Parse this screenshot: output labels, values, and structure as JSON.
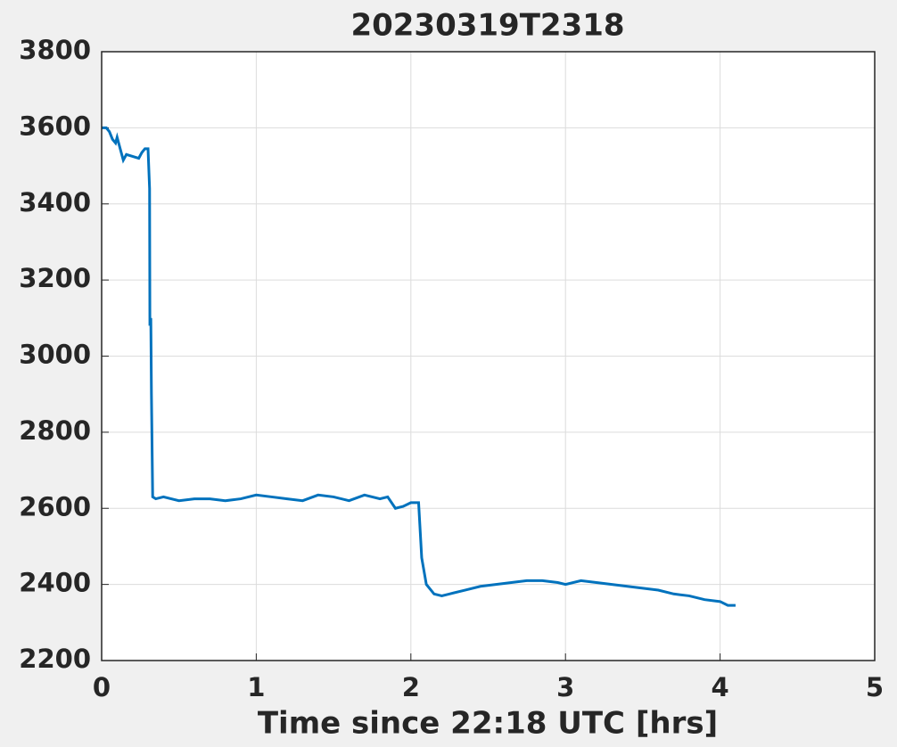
{
  "chart_data": {
    "type": "line",
    "title": "20230319T2318",
    "x_label": "Time since 22:18 UTC [hrs]",
    "xlim": [
      0,
      5
    ],
    "xticks": [
      0,
      1,
      2,
      3,
      4,
      5
    ],
    "ylim": [
      2200,
      3800
    ],
    "yticks": [
      2200,
      2400,
      2600,
      2800,
      3000,
      3200,
      3400,
      3600,
      3800
    ],
    "grid": true,
    "x": [
      0.0,
      0.03,
      0.05,
      0.07,
      0.09,
      0.1,
      0.12,
      0.14,
      0.16,
      0.2,
      0.24,
      0.26,
      0.28,
      0.3,
      0.31,
      0.312,
      0.318,
      0.322,
      0.33,
      0.35,
      0.4,
      0.5,
      0.6,
      0.7,
      0.8,
      0.9,
      1.0,
      1.1,
      1.2,
      1.3,
      1.4,
      1.5,
      1.6,
      1.7,
      1.8,
      1.85,
      1.9,
      1.95,
      2.0,
      2.05,
      2.07,
      2.1,
      2.15,
      2.2,
      2.25,
      2.35,
      2.45,
      2.55,
      2.65,
      2.75,
      2.85,
      2.95,
      3.0,
      3.1,
      3.2,
      3.3,
      3.4,
      3.5,
      3.6,
      3.7,
      3.8,
      3.9,
      4.0,
      4.05,
      4.1
    ],
    "series": [
      {
        "color": "#0072bd",
        "values": [
          3600,
          3600,
          3590,
          3570,
          3560,
          3575,
          3545,
          3515,
          3530,
          3525,
          3520,
          3535,
          3545,
          3545,
          3440,
          3080,
          3100,
          2900,
          2630,
          2625,
          2630,
          2620,
          2625,
          2625,
          2620,
          2625,
          2635,
          2630,
          2625,
          2620,
          2635,
          2630,
          2620,
          2635,
          2625,
          2630,
          2600,
          2605,
          2615,
          2615,
          2470,
          2400,
          2375,
          2370,
          2375,
          2385,
          2395,
          2400,
          2405,
          2410,
          2410,
          2405,
          2400,
          2410,
          2405,
          2400,
          2395,
          2390,
          2385,
          2375,
          2370,
          2360,
          2355,
          2345,
          2345
        ]
      }
    ]
  }
}
